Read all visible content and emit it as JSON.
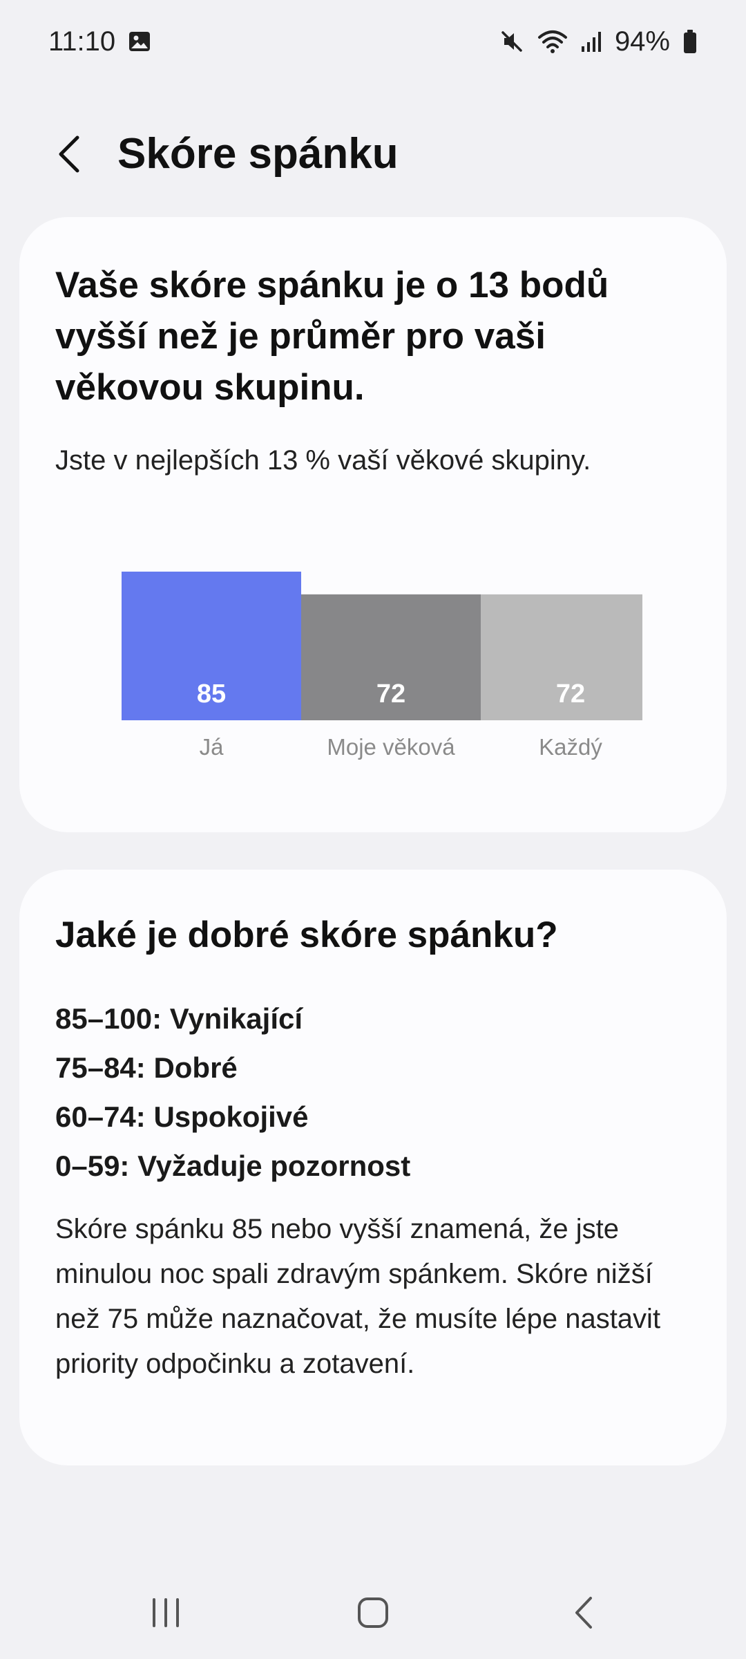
{
  "status_bar": {
    "time": "11:10",
    "battery": "94%",
    "icons": [
      "gallery-icon",
      "mute-icon",
      "wifi-icon",
      "signal-icon",
      "battery-icon"
    ]
  },
  "header": {
    "title": "Skóre spánku",
    "back_icon": "chevron-left-icon"
  },
  "comparison_card": {
    "heading": "Vaše skóre spánku je o 13 bodů vyšší než je průměr pro vaši věkovou skupinu.",
    "subtitle": "Jste v nejlepších 13 % vaší věkové skupiny."
  },
  "chart_data": {
    "type": "bar",
    "categories": [
      "Já",
      "Moje věková",
      "Každý"
    ],
    "values": [
      85,
      72,
      72
    ],
    "colors": [
      "#6479ef",
      "#878789",
      "#bababa"
    ],
    "title": "",
    "xlabel": "",
    "ylabel": "",
    "grid": false
  },
  "info_card": {
    "heading": "Jaké je dobré skóre spánku?",
    "ranges": [
      "85–100: Vynikající",
      "75–84: Dobré",
      "60–74: Uspokojivé",
      "0–59: Vyžaduje pozornost"
    ],
    "paragraph": "Skóre spánku 85 nebo vyšší znamená, že jste minulou noc spali zdravým spánkem. Skóre nižší než 75 může naznačovat, že musíte lépe nastavit priority odpočinku a zotavení."
  },
  "nav_bar": {
    "icons": [
      "recent-apps-icon",
      "home-icon",
      "back-icon"
    ]
  }
}
